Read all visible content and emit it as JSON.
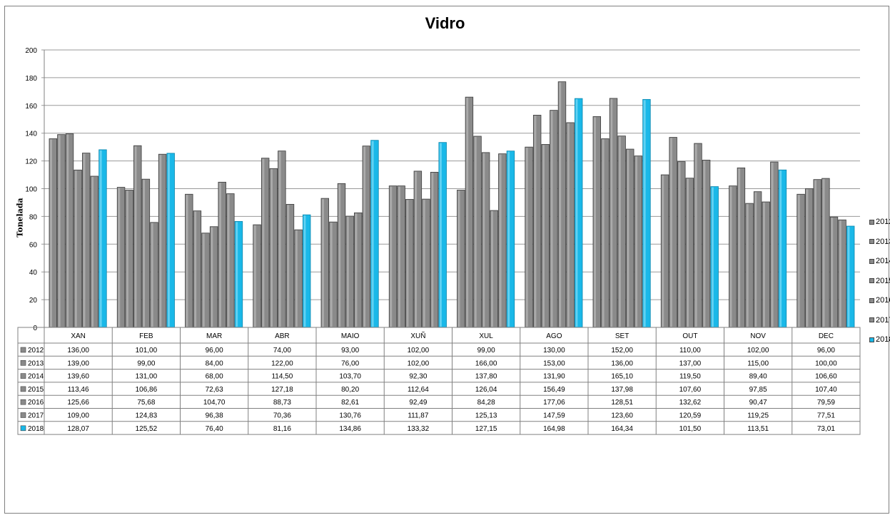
{
  "chart_data": {
    "type": "bar",
    "title": "Vidro",
    "xlabel": "",
    "ylabel": "Tonelada",
    "ylim": [
      0,
      200
    ],
    "yticks": [
      "0",
      "20",
      "40",
      "60",
      "80",
      "100",
      "120",
      "140",
      "160",
      "180",
      "200"
    ],
    "categories": [
      "XAN",
      "FEB",
      "MAR",
      "ABR",
      "MAIO",
      "XUÑ",
      "XUL",
      "AGO",
      "SET",
      "OUT",
      "NOV",
      "DEC"
    ],
    "grid": true,
    "legend_position": "right",
    "series": [
      {
        "name": "2012",
        "color": "#808080",
        "values": [
          136.0,
          101.0,
          96.0,
          74.0,
          93.0,
          102.0,
          99.0,
          130.0,
          152.0,
          110.0,
          102.0,
          96.0
        ],
        "labels": [
          "136,00",
          "101,00",
          "96,00",
          "74,00",
          "93,00",
          "102,00",
          "99,00",
          "130,00",
          "152,00",
          "110,00",
          "102,00",
          "96,00"
        ]
      },
      {
        "name": "2013",
        "color": "#808080",
        "values": [
          139.0,
          99.0,
          84.0,
          122.0,
          76.0,
          102.0,
          166.0,
          153.0,
          136.0,
          137.0,
          115.0,
          100.0
        ],
        "labels": [
          "139,00",
          "99,00",
          "84,00",
          "122,00",
          "76,00",
          "102,00",
          "166,00",
          "153,00",
          "136,00",
          "137,00",
          "115,00",
          "100,00"
        ]
      },
      {
        "name": "2014",
        "color": "#808080",
        "values": [
          139.6,
          131.0,
          68.0,
          114.5,
          103.7,
          92.3,
          137.8,
          131.9,
          165.1,
          119.5,
          89.4,
          106.6
        ],
        "labels": [
          "139,60",
          "131,00",
          "68,00",
          "114,50",
          "103,70",
          "92,30",
          "137,80",
          "131,90",
          "165,10",
          "119,50",
          "89,40",
          "106,60"
        ]
      },
      {
        "name": "2015",
        "color": "#808080",
        "values": [
          113.46,
          106.86,
          72.63,
          127.18,
          80.2,
          112.64,
          126.04,
          156.49,
          137.98,
          107.6,
          97.85,
          107.4
        ],
        "labels": [
          "113,46",
          "106,86",
          "72,63",
          "127,18",
          "80,20",
          "112,64",
          "126,04",
          "156,49",
          "137,98",
          "107,60",
          "97,85",
          "107,40"
        ]
      },
      {
        "name": "2016",
        "color": "#808080",
        "values": [
          125.66,
          75.68,
          104.7,
          88.73,
          82.61,
          92.49,
          84.28,
          177.06,
          128.51,
          132.62,
          90.47,
          79.59
        ],
        "labels": [
          "125,66",
          "75,68",
          "104,70",
          "88,73",
          "82,61",
          "92,49",
          "84,28",
          "177,06",
          "128,51",
          "132,62",
          "90,47",
          "79,59"
        ]
      },
      {
        "name": "2017",
        "color": "#808080",
        "values": [
          109.0,
          124.83,
          96.38,
          70.36,
          130.76,
          111.87,
          125.13,
          147.59,
          123.6,
          120.59,
          119.25,
          77.51
        ],
        "labels": [
          "109,00",
          "124,83",
          "96,38",
          "70,36",
          "130,76",
          "111,87",
          "125,13",
          "147,59",
          "123,60",
          "120,59",
          "119,25",
          "77,51"
        ]
      },
      {
        "name": "2018",
        "color": "#1ab8e8",
        "values": [
          128.07,
          125.52,
          76.4,
          81.16,
          134.86,
          133.32,
          127.15,
          164.98,
          164.34,
          101.5,
          113.51,
          73.01
        ],
        "labels": [
          "128,07",
          "125,52",
          "76,40",
          "81,16",
          "134,86",
          "133,32",
          "127,15",
          "164,98",
          "164,34",
          "101,50",
          "113,51",
          "73,01"
        ]
      }
    ]
  }
}
